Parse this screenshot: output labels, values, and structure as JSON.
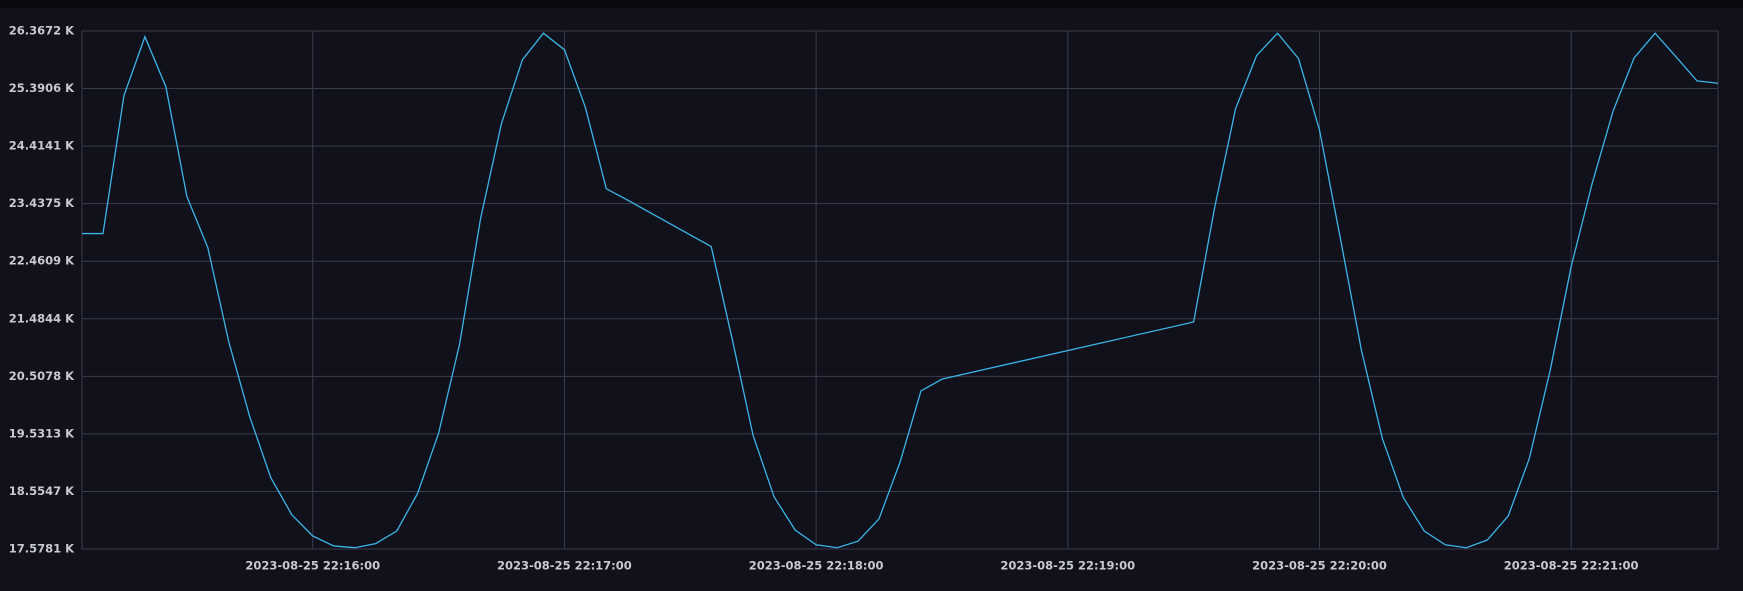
{
  "chart_data": {
    "type": "line",
    "x": [
      "2023-08-25 22:15:05",
      "2023-08-25 22:15:10",
      "2023-08-25 22:15:15",
      "2023-08-25 22:15:20",
      "2023-08-25 22:15:25",
      "2023-08-25 22:15:30",
      "2023-08-25 22:15:35",
      "2023-08-25 22:15:40",
      "2023-08-25 22:15:45",
      "2023-08-25 22:15:50",
      "2023-08-25 22:15:55",
      "2023-08-25 22:16:00",
      "2023-08-25 22:16:05",
      "2023-08-25 22:16:10",
      "2023-08-25 22:16:15",
      "2023-08-25 22:16:20",
      "2023-08-25 22:16:25",
      "2023-08-25 22:16:30",
      "2023-08-25 22:16:35",
      "2023-08-25 22:16:40",
      "2023-08-25 22:16:45",
      "2023-08-25 22:16:50",
      "2023-08-25 22:16:55",
      "2023-08-25 22:17:00",
      "2023-08-25 22:17:05",
      "2023-08-25 22:17:10",
      "2023-08-25 22:17:15",
      "2023-08-25 22:17:35",
      "2023-08-25 22:17:40",
      "2023-08-25 22:17:45",
      "2023-08-25 22:17:50",
      "2023-08-25 22:17:55",
      "2023-08-25 22:18:00",
      "2023-08-25 22:18:05",
      "2023-08-25 22:18:10",
      "2023-08-25 22:18:15",
      "2023-08-25 22:18:20",
      "2023-08-25 22:18:25",
      "2023-08-25 22:18:30",
      "2023-08-25 22:19:30",
      "2023-08-25 22:19:35",
      "2023-08-25 22:19:40",
      "2023-08-25 22:19:45",
      "2023-08-25 22:19:50",
      "2023-08-25 22:19:55",
      "2023-08-25 22:20:00",
      "2023-08-25 22:20:05",
      "2023-08-25 22:20:10",
      "2023-08-25 22:20:15",
      "2023-08-25 22:20:20",
      "2023-08-25 22:20:25",
      "2023-08-25 22:20:30",
      "2023-08-25 22:20:35",
      "2023-08-25 22:20:40",
      "2023-08-25 22:20:45",
      "2023-08-25 22:20:50",
      "2023-08-25 22:20:55",
      "2023-08-25 22:21:00",
      "2023-08-25 22:21:05",
      "2023-08-25 22:21:10",
      "2023-08-25 22:21:15",
      "2023-08-25 22:21:20",
      "2023-08-25 22:21:25",
      "2023-08-25 22:21:30",
      "2023-08-25 22:21:35"
    ],
    "series": [
      {
        "color": "#3cb4e6",
        "values": [
          22.93,
          22.93,
          25.27,
          26.27,
          25.42,
          23.56,
          22.69,
          21.09,
          19.82,
          18.79,
          18.16,
          17.8,
          17.63,
          17.6,
          17.67,
          17.88,
          18.52,
          19.54,
          21.05,
          23.18,
          24.8,
          25.88,
          26.33,
          26.05,
          25.07,
          23.69,
          23.5,
          22.71,
          21.14,
          19.5,
          18.46,
          17.9,
          17.65,
          17.6,
          17.71,
          18.09,
          19.05,
          20.26,
          20.46,
          21.43,
          23.37,
          25.05,
          25.95,
          26.33,
          25.9,
          24.69,
          22.84,
          20.95,
          19.45,
          18.45,
          17.88,
          17.65,
          17.6,
          17.73,
          18.14,
          19.11,
          20.61,
          22.37,
          23.78,
          25.01,
          25.91,
          26.33,
          25.93,
          25.52,
          25.48
        ]
      }
    ],
    "xlim": [
      "2023-08-25 22:15:05",
      "2023-08-25 22:21:35"
    ],
    "xticks": [
      {
        "value": "2023-08-25 22:16:00",
        "label": "2023-08-25 22:16:00"
      },
      {
        "value": "2023-08-25 22:17:00",
        "label": "2023-08-25 22:17:00"
      },
      {
        "value": "2023-08-25 22:18:00",
        "label": "2023-08-25 22:18:00"
      },
      {
        "value": "2023-08-25 22:19:00",
        "label": "2023-08-25 22:19:00"
      },
      {
        "value": "2023-08-25 22:20:00",
        "label": "2023-08-25 22:20:00"
      },
      {
        "value": "2023-08-25 22:21:00",
        "label": "2023-08-25 22:21:00"
      }
    ],
    "ylim": [
      17.5781,
      26.3672
    ],
    "yticks": [
      {
        "value": 17.5781,
        "label": "17.5781 K"
      },
      {
        "value": 18.5547,
        "label": "18.5547 K"
      },
      {
        "value": 19.5313,
        "label": "19.5313 K"
      },
      {
        "value": 20.5078,
        "label": "20.5078 K"
      },
      {
        "value": 21.4844,
        "label": "21.4844 K"
      },
      {
        "value": 22.4609,
        "label": "22.4609 K"
      },
      {
        "value": 23.4375,
        "label": "23.4375 K"
      },
      {
        "value": 24.4141,
        "label": "24.4141 K"
      },
      {
        "value": 25.3906,
        "label": "25.3906 K"
      },
      {
        "value": 26.3672,
        "label": "26.3672 K"
      }
    ],
    "grid": true
  }
}
